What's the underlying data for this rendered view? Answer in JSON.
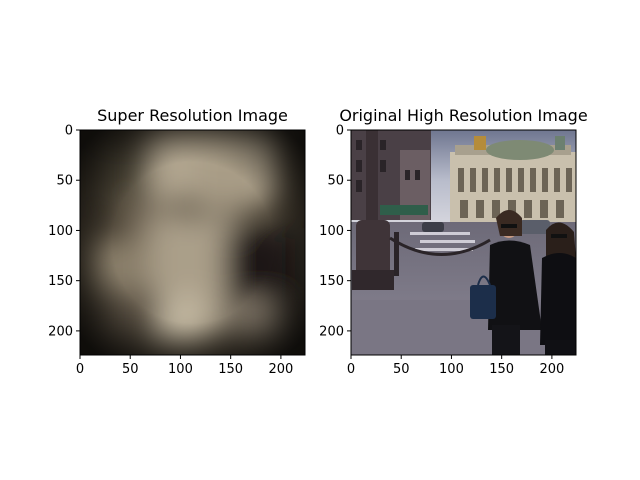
{
  "chart_data": [
    {
      "type": "image",
      "title": "Super Resolution Image",
      "xlabel": "",
      "ylabel": "",
      "xlim": [
        0,
        224
      ],
      "ylim": [
        224,
        0
      ],
      "xticks": [
        0,
        50,
        100,
        150,
        200
      ],
      "yticks": [
        0,
        50,
        100,
        150,
        200
      ],
      "content": "blurry sepia-toned low-detail upscaled image"
    },
    {
      "type": "image",
      "title": "Original High Resolution Image",
      "xlabel": "",
      "ylabel": "",
      "xlim": [
        0,
        224
      ],
      "ylim": [
        224,
        0
      ],
      "xticks": [
        0,
        50,
        100,
        150,
        200
      ],
      "yticks": [
        0,
        50,
        100,
        150,
        200
      ],
      "content": "street photo of two women in black walking in front of Palais Garnier, Paris"
    }
  ]
}
